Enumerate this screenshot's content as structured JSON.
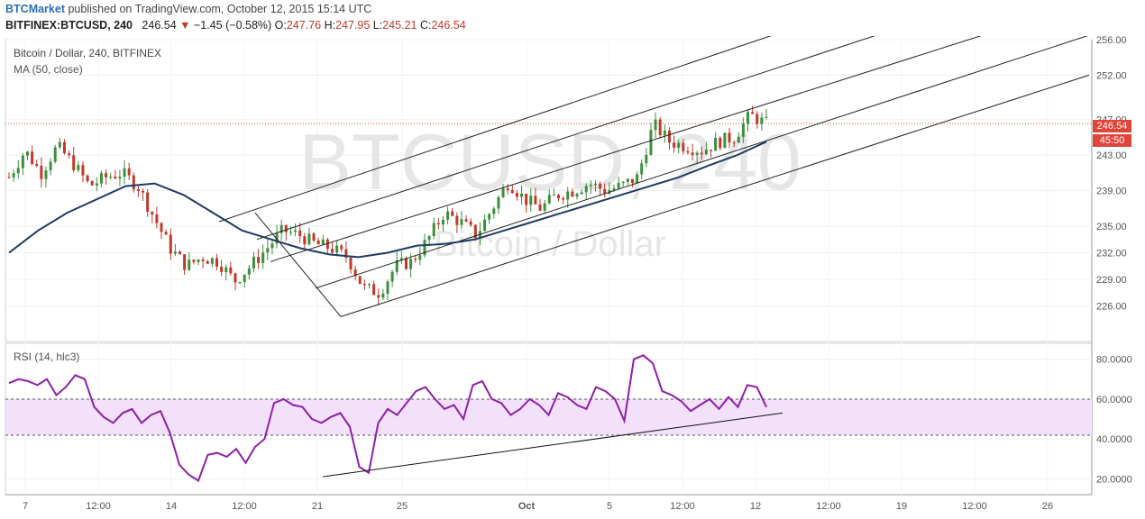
{
  "header": {
    "publisher": "BTCMarket",
    "published_text": "published on TradingView.com, October 12, 2015 15:14 UTC",
    "symbol": "BITFINEX:BTCUSD, 240",
    "last": "246.54",
    "change": "−1.45 (−0.58%)",
    "o_label": "O:",
    "o_value": "247.76",
    "h_label": "H:",
    "h_value": "247.95",
    "l_label": "L:",
    "l_value": "245.21",
    "c_label": "C:",
    "c_value": "246.54"
  },
  "price_pane": {
    "title": "Bitcoin / Dollar, 240, BITFINEX",
    "indicator": "MA (50, close)",
    "watermark_big": "BTCUSD, 240",
    "watermark_small": "Bitcoin / Dollar",
    "last_price_tag": "246.54",
    "countdown_tag": "45:50"
  },
  "rsi_pane": {
    "title": "RSI (14, hlc3)"
  },
  "colors": {
    "up": "#3c8f3c",
    "down": "#c0392b",
    "ma": "#1f3a64",
    "rsi": "#8e1fa8",
    "rsi_band": "#f3e0fa",
    "last_price": "#e0453a",
    "brand": "#2a6fb3"
  },
  "chart_data": [
    {
      "type": "candlestick",
      "title": "Bitcoin / Dollar, 240, BITFINEX",
      "x_ticks": [
        "7",
        "12:00",
        "14",
        "12:00",
        "21",
        "25",
        "Oct",
        "5",
        "12:00",
        "12",
        "12:00",
        "19",
        "12:00",
        "26"
      ],
      "y_ticks": [
        256.0,
        252.0,
        247.0,
        243.0,
        239.0,
        235.0,
        232.0,
        229.0,
        226.0
      ],
      "ylim": [
        222.0,
        256.0
      ],
      "last_price": 246.54,
      "ohlc_close_path": [
        240.5,
        243.5,
        241.0,
        244.0,
        242.0,
        239.5,
        240.5,
        241.0,
        239.5,
        236.0,
        232.5,
        230.5,
        231.5,
        231.0,
        228.8,
        230.5,
        232.5,
        234.5,
        234.0,
        233.0,
        232.5,
        231.5,
        228.0,
        227.5,
        230.5,
        231.0,
        233.5,
        236.5,
        235.5,
        234.0,
        237.0,
        240.0,
        238.0,
        237.0,
        238.5,
        239.0,
        239.8,
        239.0,
        239.5,
        240.5,
        246.5,
        244.5,
        244.0,
        243.5,
        244.5,
        245.0,
        247.5,
        246.54
      ],
      "moving_average": {
        "name": "MA (50, close)",
        "values": [
          232.0,
          234.5,
          236.5,
          238.0,
          239.5,
          239.8,
          238.5,
          236.5,
          234.5,
          233.5,
          232.5,
          231.8,
          231.5,
          232.0,
          232.8,
          233.0,
          233.5,
          234.5,
          235.5,
          236.5,
          237.5,
          238.5,
          239.5,
          240.5,
          241.8,
          243.0,
          244.5
        ]
      },
      "pitchfork_lines": [
        {
          "from": [
            243.0,
            235.5
          ],
          "to": [
            857.0,
            256.5
          ]
        },
        {
          "from": [
            285.0,
            233.5
          ],
          "to": [
            972.0,
            256.5
          ]
        },
        {
          "from": [
            300.0,
            231.0
          ],
          "to": [
            1090.0,
            256.5
          ]
        },
        {
          "from": [
            350.0,
            228.0
          ],
          "to": [
            1208.0,
            256.5
          ]
        },
        {
          "from": [
            378.0,
            224.8
          ],
          "to": [
            1208.0,
            252.0
          ]
        }
      ]
    },
    {
      "type": "line",
      "title": "RSI (14, hlc3)",
      "y_ticks": [
        80.0,
        60.0,
        40.0,
        20.0
      ],
      "ylim": [
        12.0,
        88.0
      ],
      "band": [
        40.0,
        60.0
      ],
      "series": [
        {
          "name": "RSI (14, hlc3)",
          "values": [
            68,
            70,
            69,
            67,
            70,
            62,
            66,
            72,
            70,
            56,
            51,
            48,
            53,
            55,
            48,
            52,
            54,
            43,
            27,
            22,
            19,
            32,
            33,
            31,
            35,
            28,
            36,
            40,
            58,
            60,
            57,
            56,
            50,
            48,
            51,
            53,
            46,
            26,
            23,
            48,
            55,
            52,
            58,
            64,
            66,
            60,
            55,
            57,
            50,
            67,
            69,
            60,
            58,
            52,
            55,
            60,
            57,
            52,
            63,
            61,
            57,
            55,
            66,
            64,
            60,
            49,
            80,
            82,
            78,
            64,
            62,
            59,
            54,
            57,
            60,
            55,
            61,
            56,
            67,
            66,
            56
          ]
        }
      ],
      "trendline": {
        "from": [
          20.0,
          21.0
        ],
        "to": [
          100.0,
          53.0
        ]
      }
    }
  ]
}
